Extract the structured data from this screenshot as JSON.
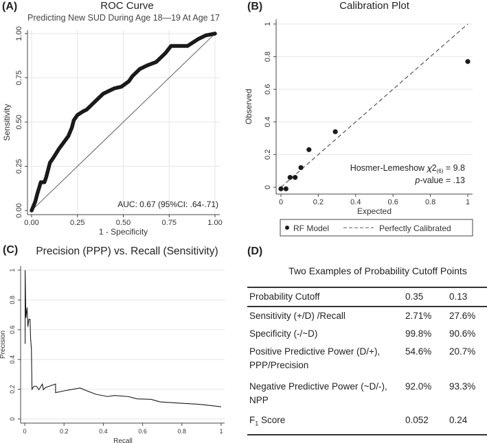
{
  "panels": {
    "a": {
      "label": "(A)",
      "title": "ROC Curve",
      "subtitle": "Predicting New SUD During Age 18—19 At Age 17"
    },
    "b": {
      "label": "(B)",
      "title": "Calibration Plot"
    },
    "c": {
      "label": "(C)",
      "title": "Precision (PPP) vs. Recall (Sensitivity)"
    },
    "d": {
      "label": "(D)",
      "title": "Two Examples of Probability Cutoff Points"
    }
  },
  "chart_data": [
    {
      "type": "line",
      "title": "ROC Curve",
      "subtitle": "Predicting New SUD During Age 18—19 At Age 17",
      "xlabel": "1 - Specificity",
      "ylabel": "Sensitivity",
      "xlim": [
        0,
        1
      ],
      "ylim": [
        0,
        1
      ],
      "xticks": [
        "0.00",
        "0.25",
        "0.50",
        "0.75",
        "1.00"
      ],
      "yticks": [
        "0.00",
        "0.25",
        "0.50",
        "0.75",
        "1.00"
      ],
      "grid": true,
      "annotation": "AUC: 0.67 (95%CI: .64-.71)",
      "reference_line": "diagonal",
      "series": [
        {
          "x": [
            0,
            0.02,
            0.03,
            0.05,
            0.07,
            0.08,
            0.09,
            0.1,
            0.12,
            0.15,
            0.2,
            0.22,
            0.23,
            0.25,
            0.28,
            0.3,
            0.33,
            0.35,
            0.39,
            0.41,
            0.45,
            0.49,
            0.53,
            0.55,
            0.59,
            0.63,
            0.68,
            0.7,
            0.73,
            0.76,
            0.81,
            0.85,
            0.91,
            0.95,
            1
          ],
          "y": [
            0,
            0.05,
            0.09,
            0.16,
            0.16,
            0.19,
            0.23,
            0.27,
            0.3,
            0.35,
            0.42,
            0.47,
            0.51,
            0.54,
            0.56,
            0.57,
            0.6,
            0.62,
            0.66,
            0.67,
            0.69,
            0.7,
            0.73,
            0.76,
            0.8,
            0.82,
            0.84,
            0.86,
            0.89,
            0.93,
            0.93,
            0.93,
            0.97,
            0.99,
            1
          ]
        }
      ]
    },
    {
      "type": "scatter",
      "title": "Calibration Plot",
      "xlabel": "Expected",
      "ylabel": "Observed",
      "xlim": [
        0,
        1
      ],
      "ylim": [
        0,
        1
      ],
      "xticks": [
        "0",
        "0.2",
        "0.4",
        "0.6",
        "0.8",
        "1"
      ],
      "yticks": [
        "0",
        "0.2",
        "0.4",
        "0.6",
        "0.8",
        "1"
      ],
      "grid": true,
      "annotation_line1": "Hosmer-Lemeshow 𝜒2",
      "annotation_sub": "(6)",
      "annotation_value": "=  9.8",
      "annotation_p_italic": "p",
      "annotation_line2": "-value = .13",
      "legend": "bottom",
      "series": [
        {
          "name": "RF Model",
          "x": [
            0,
            0.027,
            0.049,
            0.076,
            0.107,
            0.15,
            0.291,
            1
          ],
          "y": [
            -0.01,
            -0.01,
            0.06,
            0.06,
            0.12,
            0.23,
            0.34,
            0.77
          ]
        },
        {
          "name": "Perfectly Calibrated",
          "x": [
            0,
            1
          ],
          "y": [
            0,
            1
          ],
          "style": "dashed"
        }
      ]
    },
    {
      "type": "line",
      "title": "Precision (PPP) vs. Recall (Sensitivity)",
      "xlabel": "Recall",
      "ylabel": "Precision",
      "xlim": [
        0,
        1
      ],
      "ylim": [
        0,
        1
      ],
      "xticks": [
        "0",
        "0.2",
        "0.4",
        "0.6",
        "0.8",
        "1"
      ],
      "yticks": [
        "0",
        "0.2",
        "0.4",
        "0.6",
        "0.8",
        "1"
      ],
      "grid": true,
      "series": [
        {
          "x": [
            0.002,
            0.002,
            0.006,
            0.012,
            0.016,
            0.021,
            0.027,
            0.03,
            0.034,
            0.037,
            0.047,
            0.06,
            0.072,
            0.09,
            0.095,
            0.107,
            0.142,
            0.157,
            0.157,
            0.2,
            0.247,
            0.282,
            0.317,
            0.363,
            0.421,
            0.456,
            0.526,
            0.573,
            0.643,
            0.689,
            0.806,
            0.875,
            0.922,
            1
          ],
          "y": [
            0.505,
            1,
            0.68,
            0.75,
            0.62,
            0.67,
            0.67,
            0.54,
            0.47,
            0.2,
            0.22,
            0.22,
            0.197,
            0.235,
            0.197,
            0.212,
            0.228,
            0.235,
            0.177,
            0.189,
            0.2,
            0.208,
            0.189,
            0.166,
            0.151,
            0.158,
            0.151,
            0.135,
            0.132,
            0.115,
            0.105,
            0.1,
            0.094,
            0.082
          ]
        }
      ]
    },
    {
      "type": "table",
      "title": "Two Examples of Probability Cutoff Points",
      "header": [
        "Probability Cutoff",
        "0.35",
        "0.13"
      ],
      "rows": [
        {
          "label": "Sensitivity (+/D) /Recall",
          "values": [
            "2.71%",
            "27.6%"
          ]
        },
        {
          "label": "Specificity (-/~D)",
          "values": [
            "99.8%",
            "90.6%"
          ]
        },
        {
          "label": "Positive Predictive Power (D/+), PPP/Precision",
          "values": [
            "54.6%",
            "20.7%"
          ]
        },
        {
          "label": "Negative Predictive Power (~D/-), NPP",
          "values": [
            "92.0%",
            "93.3%"
          ]
        },
        {
          "label_main": "F",
          "label_sub": "1",
          "label_rest": " Score",
          "values": [
            "0.052",
            "0.24"
          ]
        }
      ]
    }
  ],
  "colors": {
    "curve": "#1a1a1a",
    "grid": "#e6e6e6",
    "reference": "#777777",
    "axis": "#444444"
  }
}
